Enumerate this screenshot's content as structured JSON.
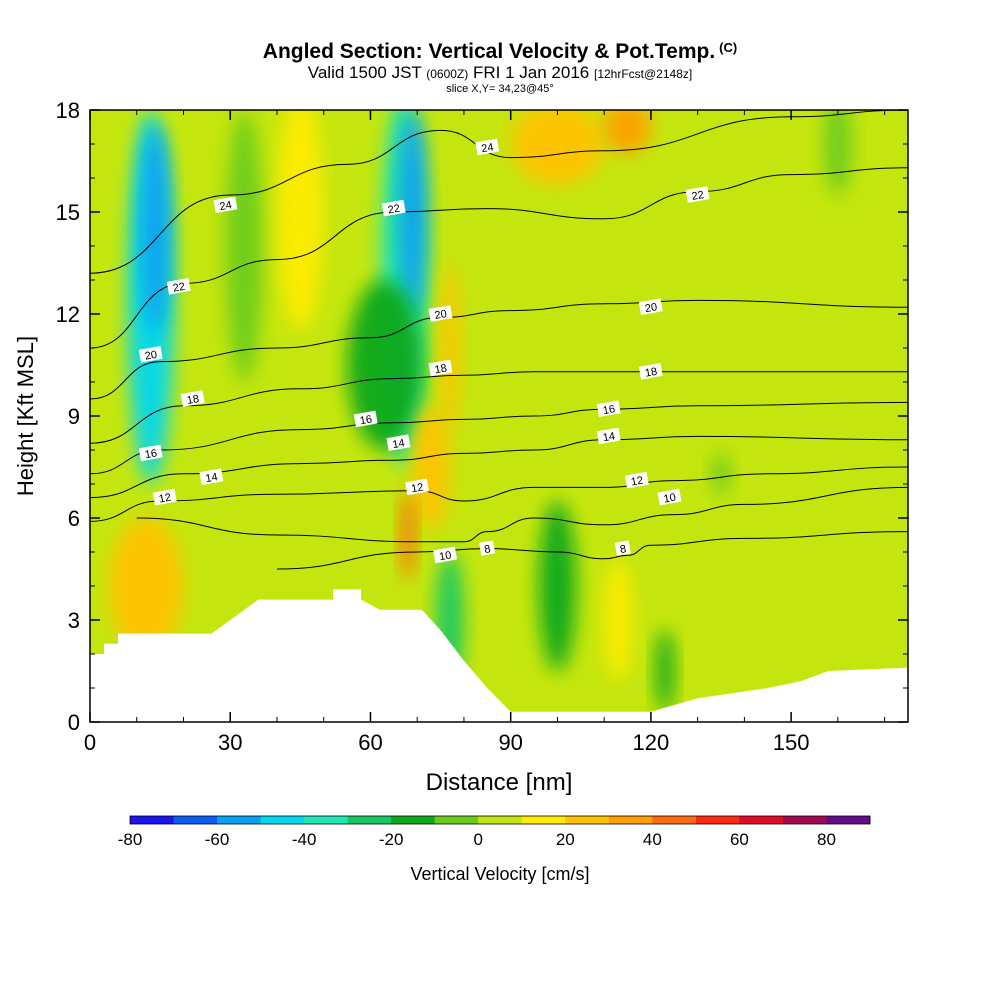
{
  "header": {
    "title": "Angled Section: Vertical Velocity & Pot.Temp.",
    "copyright": "(C)",
    "valid_prefix": "Valid 1500 JST",
    "valid_z": "(0600Z)",
    "valid_date": "FRI 1 Jan 2016",
    "forecast": "[12hrFcst@2148z]",
    "slice": "slice X,Y= 34,23@45°"
  },
  "chart_data": {
    "type": "heatmap",
    "title": "Angled Section: Vertical Velocity & Pot.Temp.",
    "xlabel": "Distance [nm]",
    "ylabel": "Height [Kft MSL]",
    "xlim": [
      0,
      175
    ],
    "ylim": [
      0,
      18
    ],
    "x_ticks": [
      0,
      30,
      60,
      90,
      120,
      150
    ],
    "y_ticks": [
      0,
      3,
      6,
      9,
      12,
      15,
      18
    ],
    "colorbar": {
      "label": "Vertical Velocity [cm/s]",
      "ticks": [
        -80,
        -60,
        -40,
        -20,
        0,
        20,
        40,
        60,
        80
      ],
      "bins": [
        {
          "from": -80,
          "to": -70,
          "color": "#1a14f0"
        },
        {
          "from": -70,
          "to": -60,
          "color": "#0a5cf5"
        },
        {
          "from": -60,
          "to": -50,
          "color": "#08a0f0"
        },
        {
          "from": -50,
          "to": -40,
          "color": "#00d8f0"
        },
        {
          "from": -40,
          "to": -30,
          "color": "#1ee6b4"
        },
        {
          "from": -30,
          "to": -20,
          "color": "#14c864"
        },
        {
          "from": -20,
          "to": -10,
          "color": "#0ea81e"
        },
        {
          "from": -10,
          "to": 0,
          "color": "#6ccc1c"
        },
        {
          "from": 0,
          "to": 10,
          "color": "#c4e60e"
        },
        {
          "from": 10,
          "to": 20,
          "color": "#ffec00"
        },
        {
          "from": 20,
          "to": 30,
          "color": "#ffc300"
        },
        {
          "from": 30,
          "to": 40,
          "color": "#ffa000"
        },
        {
          "from": 40,
          "to": 50,
          "color": "#ff6a10"
        },
        {
          "from": 50,
          "to": 60,
          "color": "#ff2a10"
        },
        {
          "from": 60,
          "to": 70,
          "color": "#e00a28"
        },
        {
          "from": 70,
          "to": 80,
          "color": "#a00a50"
        },
        {
          "from": 80,
          "to": 90,
          "color": "#640a8c"
        }
      ]
    },
    "theta_contours": [
      {
        "label": "8",
        "points": [
          [
            40,
            4.5
          ],
          [
            70,
            5.0
          ],
          [
            85,
            5.1
          ],
          [
            100,
            5.0
          ],
          [
            110,
            4.8
          ],
          [
            115,
            4.9
          ],
          [
            120,
            5.2
          ],
          [
            140,
            5.4
          ],
          [
            175,
            5.6
          ]
        ]
      },
      {
        "label": "10",
        "points": [
          [
            10,
            6.0
          ],
          [
            40,
            5.5
          ],
          [
            70,
            5.3
          ],
          [
            80,
            5.3
          ],
          [
            85,
            5.6
          ],
          [
            95,
            6.0
          ],
          [
            110,
            5.8
          ],
          [
            125,
            6.1
          ],
          [
            140,
            6.4
          ],
          [
            175,
            6.9
          ]
        ]
      },
      {
        "label": "12",
        "points": [
          [
            0,
            5.9
          ],
          [
            15,
            6.5
          ],
          [
            40,
            6.7
          ],
          [
            70,
            6.8
          ],
          [
            80,
            6.5
          ],
          [
            95,
            6.9
          ],
          [
            110,
            6.9
          ],
          [
            125,
            7.1
          ],
          [
            145,
            7.3
          ],
          [
            175,
            7.5
          ]
        ]
      },
      {
        "label": "14",
        "points": [
          [
            0,
            6.6
          ],
          [
            20,
            7.3
          ],
          [
            45,
            7.6
          ],
          [
            65,
            7.7
          ],
          [
            80,
            7.9
          ],
          [
            95,
            8.0
          ],
          [
            110,
            8.3
          ],
          [
            130,
            8.4
          ],
          [
            175,
            8.3
          ]
        ]
      },
      {
        "label": "16",
        "points": [
          [
            0,
            7.3
          ],
          [
            15,
            8.0
          ],
          [
            45,
            8.6
          ],
          [
            65,
            8.8
          ],
          [
            80,
            8.9
          ],
          [
            95,
            9.0
          ],
          [
            110,
            9.2
          ],
          [
            130,
            9.3
          ],
          [
            175,
            9.4
          ]
        ]
      },
      {
        "label": "18",
        "points": [
          [
            0,
            8.2
          ],
          [
            20,
            9.3
          ],
          [
            45,
            9.8
          ],
          [
            65,
            10.1
          ],
          [
            80,
            10.2
          ],
          [
            95,
            10.3
          ],
          [
            115,
            10.3
          ],
          [
            175,
            10.3
          ]
        ]
      },
      {
        "label": "20",
        "points": [
          [
            0,
            9.5
          ],
          [
            15,
            10.6
          ],
          [
            40,
            11.0
          ],
          [
            60,
            11.3
          ],
          [
            75,
            11.9
          ],
          [
            90,
            12.1
          ],
          [
            110,
            12.3
          ],
          [
            130,
            12.4
          ],
          [
            175,
            12.2
          ]
        ]
      },
      {
        "label": "22",
        "points": [
          [
            0,
            11.0
          ],
          [
            20,
            12.9
          ],
          [
            40,
            13.6
          ],
          [
            65,
            15.0
          ],
          [
            85,
            15.1
          ],
          [
            110,
            14.8
          ],
          [
            130,
            15.6
          ],
          [
            150,
            16.1
          ],
          [
            175,
            16.3
          ]
        ]
      },
      {
        "label": "24",
        "points": [
          [
            0,
            13.2
          ],
          [
            30,
            15.5
          ],
          [
            55,
            16.4
          ],
          [
            75,
            17.4
          ],
          [
            90,
            16.6
          ],
          [
            110,
            16.8
          ],
          [
            150,
            17.8
          ],
          [
            175,
            18.0
          ]
        ]
      }
    ],
    "theta_labels": [
      {
        "label": "8",
        "x": 85,
        "y": 5.1
      },
      {
        "label": "8",
        "x": 114,
        "y": 5.1
      },
      {
        "label": "10",
        "x": 76,
        "y": 4.9
      },
      {
        "label": "10",
        "x": 124,
        "y": 6.6
      },
      {
        "label": "12",
        "x": 16,
        "y": 6.6
      },
      {
        "label": "12",
        "x": 70,
        "y": 6.9
      },
      {
        "label": "12",
        "x": 117,
        "y": 7.1
      },
      {
        "label": "14",
        "x": 26,
        "y": 7.2
      },
      {
        "label": "14",
        "x": 66,
        "y": 8.2
      },
      {
        "label": "14",
        "x": 111,
        "y": 8.4
      },
      {
        "label": "16",
        "x": 13,
        "y": 7.9
      },
      {
        "label": "16",
        "x": 59,
        "y": 8.9
      },
      {
        "label": "16",
        "x": 111,
        "y": 9.2
      },
      {
        "label": "18",
        "x": 22,
        "y": 9.5
      },
      {
        "label": "18",
        "x": 75,
        "y": 10.4
      },
      {
        "label": "18",
        "x": 120,
        "y": 10.3
      },
      {
        "label": "20",
        "x": 13,
        "y": 10.8
      },
      {
        "label": "20",
        "x": 75,
        "y": 12.0
      },
      {
        "label": "20",
        "x": 120,
        "y": 12.2
      },
      {
        "label": "22",
        "x": 19,
        "y": 12.8
      },
      {
        "label": "22",
        "x": 65,
        "y": 15.1
      },
      {
        "label": "22",
        "x": 130,
        "y": 15.5
      },
      {
        "label": "24",
        "x": 29,
        "y": 15.2
      },
      {
        "label": "24",
        "x": 85,
        "y": 16.9
      }
    ],
    "velocity_features": [
      {
        "x": 13,
        "y": 12.5,
        "rx": 5,
        "ry": 5.5,
        "value": -45
      },
      {
        "x": 14,
        "y": 14.5,
        "rx": 3,
        "ry": 3.0,
        "value": -55
      },
      {
        "x": 33,
        "y": 14.0,
        "rx": 4,
        "ry": 4.0,
        "value": -8
      },
      {
        "x": 45,
        "y": 15.0,
        "rx": 5,
        "ry": 3.5,
        "value": 12
      },
      {
        "x": 67,
        "y": 13.0,
        "rx": 5,
        "ry": 5.5,
        "value": -40
      },
      {
        "x": 69,
        "y": 15.0,
        "rx": 3,
        "ry": 3.0,
        "value": -52
      },
      {
        "x": 63,
        "y": 10.5,
        "rx": 8,
        "ry": 2.5,
        "value": -18
      },
      {
        "x": 77,
        "y": 11.0,
        "rx": 2,
        "ry": 2.5,
        "value": 28
      },
      {
        "x": 73,
        "y": 7.5,
        "rx": 4,
        "ry": 1.8,
        "value": 25
      },
      {
        "x": 68,
        "y": 5.5,
        "rx": 1.5,
        "ry": 1.3,
        "value": 45
      },
      {
        "x": 100,
        "y": 17.0,
        "rx": 10,
        "ry": 1.2,
        "value": 25
      },
      {
        "x": 115,
        "y": 17.5,
        "rx": 5,
        "ry": 0.8,
        "value": 30
      },
      {
        "x": 100,
        "y": 4.0,
        "rx": 4,
        "ry": 2.5,
        "value": -15
      },
      {
        "x": 77,
        "y": 3.0,
        "rx": 3,
        "ry": 2.0,
        "value": -22
      },
      {
        "x": 12,
        "y": 4.0,
        "rx": 8,
        "ry": 2.0,
        "value": 20
      },
      {
        "x": 113,
        "y": 3.0,
        "rx": 3,
        "ry": 1.8,
        "value": 18
      },
      {
        "x": 123,
        "y": 1.5,
        "rx": 2,
        "ry": 1.2,
        "value": -12
      },
      {
        "x": 160,
        "y": 17.0,
        "rx": 3,
        "ry": 1.5,
        "value": -5
      },
      {
        "x": 135,
        "y": 7.3,
        "rx": 2,
        "ry": 0.6,
        "value": -10
      }
    ],
    "terrain": [
      [
        0,
        2.0
      ],
      [
        3,
        2.0
      ],
      [
        3,
        2.3
      ],
      [
        6,
        2.3
      ],
      [
        6,
        2.6
      ],
      [
        18,
        2.6
      ],
      [
        26,
        2.6
      ],
      [
        29,
        2.9
      ],
      [
        32,
        3.2
      ],
      [
        36,
        3.6
      ],
      [
        52,
        3.6
      ],
      [
        52,
        3.9
      ],
      [
        58,
        3.9
      ],
      [
        58,
        3.6
      ],
      [
        62,
        3.3
      ],
      [
        70,
        3.3
      ],
      [
        71,
        3.3
      ],
      [
        75,
        2.7
      ],
      [
        80,
        1.8
      ],
      [
        85,
        1.0
      ],
      [
        90,
        0.3
      ],
      [
        120,
        0.3
      ],
      [
        130,
        0.7
      ],
      [
        145,
        1.0
      ],
      [
        152,
        1.2
      ],
      [
        158,
        1.5
      ],
      [
        175,
        1.6
      ]
    ]
  },
  "plot_bg": "#c4e60e"
}
